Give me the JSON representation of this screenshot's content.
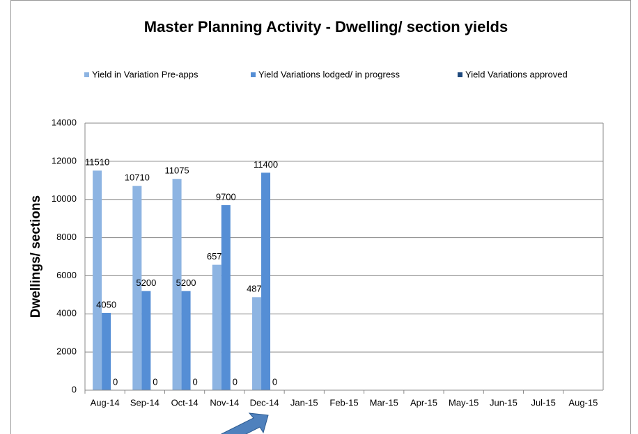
{
  "chart_data": {
    "type": "bar",
    "title": "Master Planning Activity - Dwelling/ section yields",
    "y_label": "Dwellings/ sections",
    "categories": [
      "Aug-14",
      "Sep-14",
      "Oct-14",
      "Nov-14",
      "Dec-14",
      "Jan-15",
      "Feb-15",
      "Mar-15",
      "Apr-15",
      "May-15",
      "Jun-15",
      "Jul-15",
      "Aug-15"
    ],
    "series": [
      {
        "name": "Yield in Variation Pre-apps",
        "color": "#8db4e2",
        "values": [
          11510,
          10710,
          11075,
          6575,
          4875,
          null,
          null,
          null,
          null,
          null,
          null,
          null,
          null
        ]
      },
      {
        "name": "Yield Variations lodged/ in progress",
        "color": "#558ed5",
        "values": [
          4050,
          5200,
          5200,
          9700,
          11400,
          null,
          null,
          null,
          null,
          null,
          null,
          null,
          null
        ]
      },
      {
        "name": "Yield Variations approved",
        "color": "#1f497d",
        "values": [
          0,
          0,
          0,
          0,
          0,
          null,
          null,
          null,
          null,
          null,
          null,
          null,
          null
        ]
      }
    ],
    "ylim": [
      0,
      14000
    ],
    "yticks": [
      0,
      2000,
      4000,
      6000,
      8000,
      10000,
      12000,
      14000
    ],
    "grid": true
  }
}
